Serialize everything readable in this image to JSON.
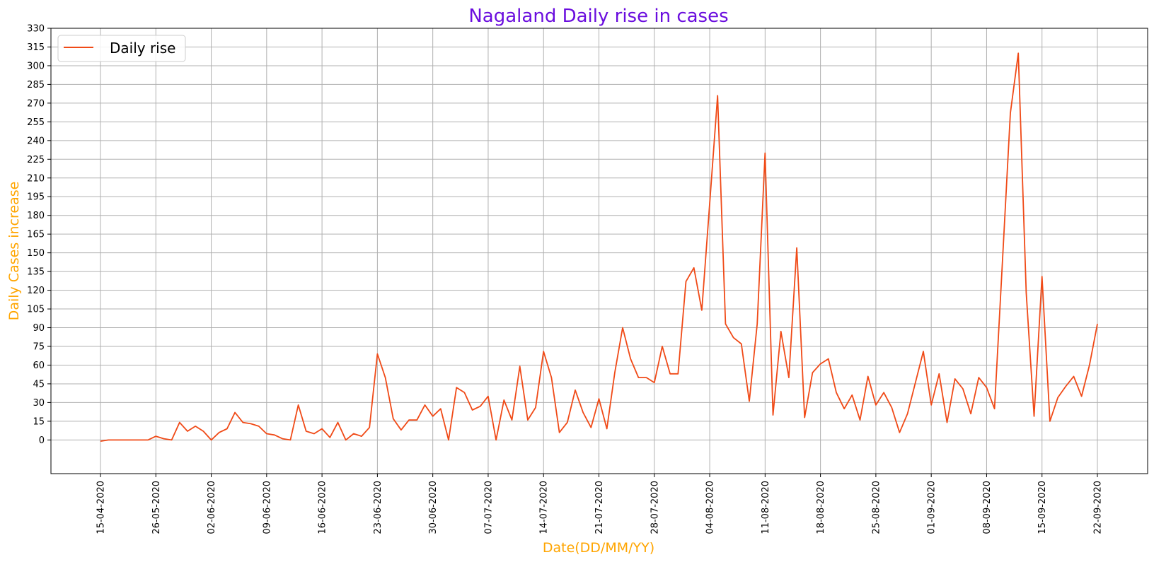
{
  "chart_data": {
    "type": "line",
    "title": "Nagaland Daily rise in cases",
    "xlabel": "Date(DD/MM/YY)",
    "ylabel": "Daily Cases increase",
    "ylim": [
      -27,
      330
    ],
    "yticks": [
      0,
      15,
      30,
      45,
      60,
      75,
      90,
      105,
      120,
      135,
      150,
      165,
      180,
      195,
      210,
      225,
      240,
      255,
      270,
      285,
      300,
      315,
      330
    ],
    "grid": true,
    "legend_position": "top-left",
    "colors": {
      "title": "#6a0dde",
      "axis_label": "#ffa500",
      "line": "#f04a17",
      "grid": "#b0b0b0"
    },
    "xtick_labels": [
      "15-04-2020",
      "26-05-2020",
      "02-06-2020",
      "09-06-2020",
      "16-06-2020",
      "23-06-2020",
      "30-06-2020",
      "07-07-2020",
      "14-07-2020",
      "21-07-2020",
      "28-07-2020",
      "04-08-2020",
      "11-08-2020",
      "18-08-2020",
      "25-08-2020",
      "01-09-2020",
      "08-09-2020",
      "15-09-2020",
      "22-09-2020"
    ],
    "series": [
      {
        "name": "Daily rise",
        "values": [
          -1,
          0,
          0,
          0,
          0,
          0,
          0,
          3,
          1,
          0,
          14,
          7,
          11,
          7,
          0,
          6,
          9,
          22,
          14,
          13,
          11,
          5,
          4,
          1,
          0,
          28,
          7,
          5,
          9,
          2,
          14,
          0,
          5,
          3,
          10,
          69,
          50,
          17,
          8,
          16,
          16,
          28,
          19,
          25,
          0,
          42,
          38,
          24,
          27,
          35,
          0,
          32,
          16,
          59,
          16,
          26,
          71,
          50,
          6,
          14,
          40,
          22,
          10,
          33,
          9,
          54,
          90,
          65,
          50,
          50,
          46,
          75,
          53,
          53,
          127,
          138,
          104,
          190,
          276,
          93,
          82,
          77,
          31,
          93,
          230,
          20,
          87,
          50,
          154,
          18,
          54,
          61,
          65,
          38,
          25,
          36,
          16,
          51,
          28,
          38,
          26,
          6,
          21,
          46,
          71,
          28,
          53,
          14,
          49,
          41,
          21,
          50,
          42,
          25,
          143,
          262,
          310,
          118,
          19,
          131,
          15,
          34,
          43,
          51,
          35,
          60,
          93
        ]
      }
    ]
  }
}
